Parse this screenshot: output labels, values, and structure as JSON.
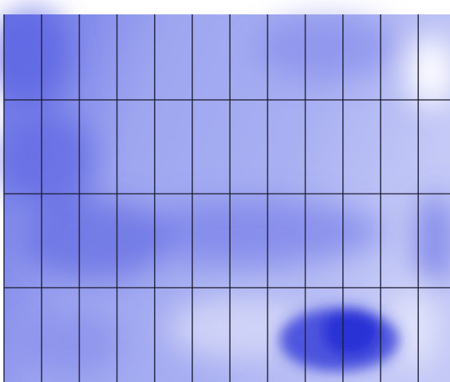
{
  "panel": {
    "rows": 4,
    "columns": 12
  }
}
